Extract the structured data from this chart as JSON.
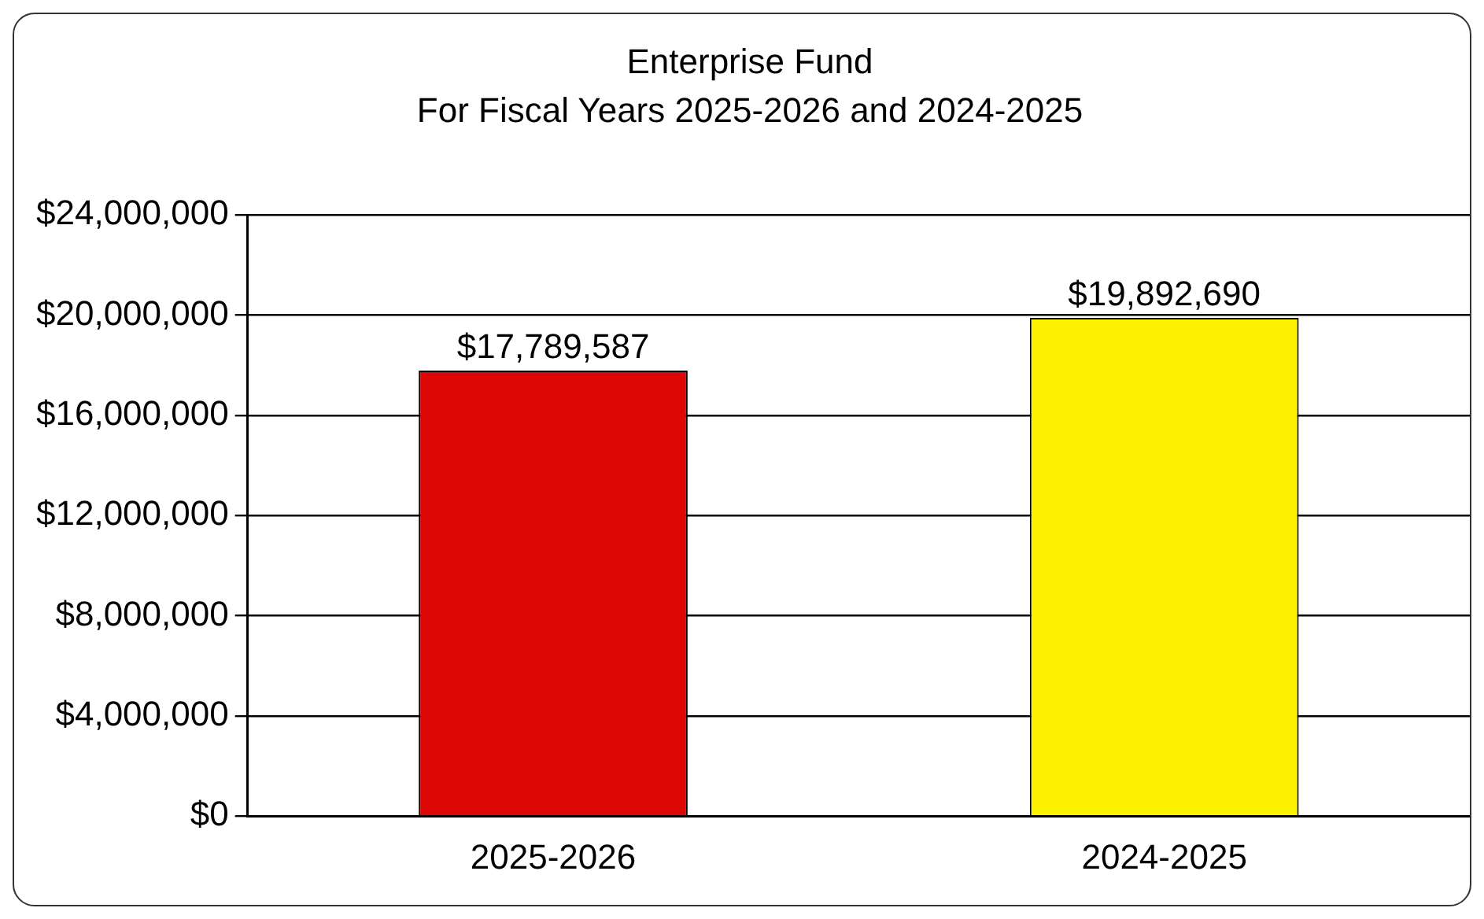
{
  "chart_data": {
    "type": "bar",
    "title": [
      "Enterprise Fund",
      "For Fiscal Years 2025-2026 and 2024-2025"
    ],
    "categories": [
      "2025-2026",
      "2024-2025"
    ],
    "values": [
      17789587,
      19892690
    ],
    "colors": [
      "#dd0806",
      "#fff200"
    ],
    "value_labels": [
      "$17,789,587",
      "$19,892,690"
    ],
    "ylim": [
      0,
      24000000
    ],
    "yticks": [
      {
        "value": 0,
        "label": "$0"
      },
      {
        "value": 4000000,
        "label": "$4,000,000"
      },
      {
        "value": 8000000,
        "label": "$8,000,000"
      },
      {
        "value": 12000000,
        "label": "$12,000,000"
      },
      {
        "value": 16000000,
        "label": "$16,000,000"
      },
      {
        "value": 20000000,
        "label": "$20,000,000"
      },
      {
        "value": 24000000,
        "label": "$24,000,000"
      }
    ],
    "grid": "y"
  }
}
